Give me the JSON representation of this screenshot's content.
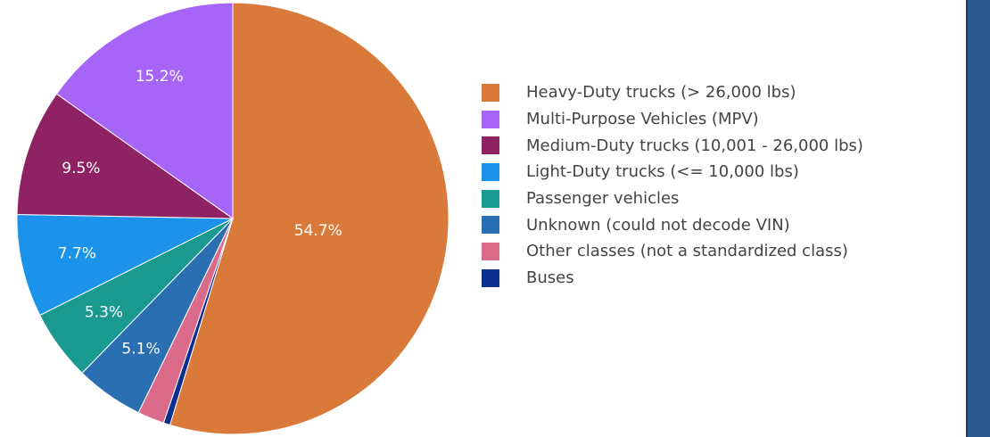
{
  "chart_data": {
    "type": "pie",
    "title": "",
    "legend_position": "right",
    "slices": [
      {
        "name": "Heavy-Duty trucks (> 26,000 lbs)",
        "value": 54.7,
        "label": "54.7%",
        "color": "#d9793a"
      },
      {
        "name": "Buses",
        "value": 0.5,
        "label": "",
        "color": "#0a2f8f"
      },
      {
        "name": "Other classes (not a standardized class)",
        "value": 2.0,
        "label": "",
        "color": "#db6b8b"
      },
      {
        "name": "Unknown (could not decode VIN)",
        "value": 5.1,
        "label": "5.1%",
        "color": "#2a6fb2"
      },
      {
        "name": "Passenger vehicles",
        "value": 5.3,
        "label": "5.3%",
        "color": "#1a9990"
      },
      {
        "name": "Light-Duty trucks (<= 10,000 lbs)",
        "value": 7.7,
        "label": "7.7%",
        "color": "#1c93eb"
      },
      {
        "name": "Medium-Duty trucks (10,001 - 26,000 lbs)",
        "value": 9.5,
        "label": "9.5%",
        "color": "#8e2263"
      },
      {
        "name": "Multi-Purpose Vehicles (MPV)",
        "value": 15.2,
        "label": "15.2%",
        "color": "#a765f8"
      }
    ],
    "legend": [
      {
        "label": "Heavy-Duty trucks (> 26,000 lbs)",
        "color": "#d9793a"
      },
      {
        "label": "Multi-Purpose Vehicles (MPV)",
        "color": "#a765f8"
      },
      {
        "label": "Medium-Duty trucks (10,001 - 26,000 lbs)",
        "color": "#8e2263"
      },
      {
        "label": "Light-Duty trucks (<= 10,000 lbs)",
        "color": "#1c93eb"
      },
      {
        "label": "Passenger vehicles",
        "color": "#1a9990"
      },
      {
        "label": "Unknown (could not decode VIN)",
        "color": "#2a6fb2"
      },
      {
        "label": "Other classes (not a standardized class)",
        "color": "#db6b8b"
      },
      {
        "label": "Buses",
        "color": "#0a2f8f"
      }
    ]
  },
  "side_panel_color": "#2a5a8e"
}
